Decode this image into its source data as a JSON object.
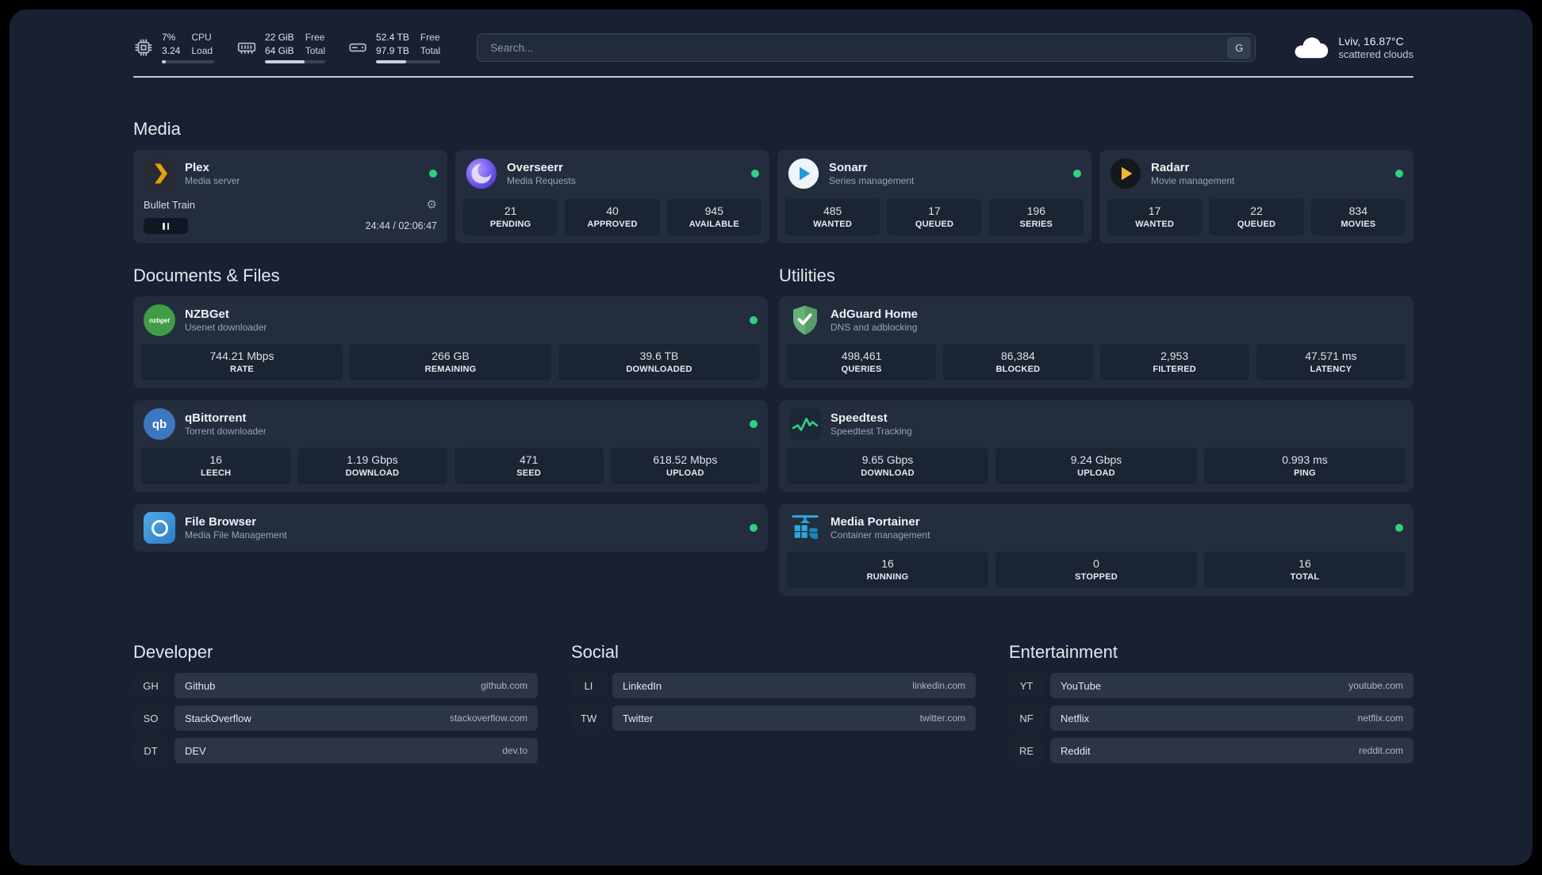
{
  "topbar": {
    "resources": [
      {
        "icon": "cpu-icon",
        "values": [
          "7%",
          "3.24"
        ],
        "labels": [
          "CPU",
          "Load"
        ],
        "progress_pct": 7
      },
      {
        "icon": "memory-icon",
        "values": [
          "22 GiB",
          "64 GiB"
        ],
        "labels": [
          "Free",
          "Total"
        ],
        "progress_pct": 66
      },
      {
        "icon": "disk-icon",
        "values": [
          "52.4 TB",
          "97.9 TB"
        ],
        "labels": [
          "Free",
          "Total"
        ],
        "progress_pct": 47
      }
    ],
    "search": {
      "placeholder": "Search...",
      "provider_label": "G"
    },
    "weather": {
      "icon": "cloud-icon",
      "location": "Lviv, 16.87°C",
      "condition": "scattered clouds"
    }
  },
  "groups": [
    {
      "id": "media",
      "title": "Media",
      "layout": "row",
      "cards": [
        {
          "id": "plex",
          "name": "Plex",
          "description": "Media server",
          "icon": "plex-icon",
          "status": "online",
          "player": {
            "title": "Bullet Train",
            "state": "paused",
            "time": "24:44 / 02:06:47"
          }
        },
        {
          "id": "overseerr",
          "name": "Overseerr",
          "description": "Media Requests",
          "icon": "overseerr-icon",
          "status": "online",
          "stats": [
            {
              "value": "21",
              "label": "PENDING"
            },
            {
              "value": "40",
              "label": "APPROVED"
            },
            {
              "value": "945",
              "label": "AVAILABLE"
            }
          ]
        },
        {
          "id": "sonarr",
          "name": "Sonarr",
          "description": "Series management",
          "icon": "sonarr-icon",
          "status": "online",
          "stats": [
            {
              "value": "485",
              "label": "WANTED"
            },
            {
              "value": "17",
              "label": "QUEUED"
            },
            {
              "value": "196",
              "label": "SERIES"
            }
          ]
        },
        {
          "id": "radarr",
          "name": "Radarr",
          "description": "Movie management",
          "icon": "radarr-icon",
          "status": "online",
          "stats": [
            {
              "value": "17",
              "label": "WANTED"
            },
            {
              "value": "22",
              "label": "QUEUED"
            },
            {
              "value": "834",
              "label": "MOVIES"
            }
          ]
        }
      ]
    },
    {
      "id": "documents",
      "title": "Documents & Files",
      "layout": "column",
      "cards": [
        {
          "id": "nzbget",
          "name": "NZBGet",
          "description": "Usenet downloader",
          "icon": "nzbget-icon",
          "status": "online",
          "stats": [
            {
              "value": "744.21 Mbps",
              "label": "RATE"
            },
            {
              "value": "266 GB",
              "label": "REMAINING"
            },
            {
              "value": "39.6 TB",
              "label": "DOWNLOADED"
            }
          ]
        },
        {
          "id": "qbittorrent",
          "name": "qBittorrent",
          "description": "Torrent downloader",
          "icon": "qbittorrent-icon",
          "status": "online",
          "stats": [
            {
              "value": "16",
              "label": "LEECH"
            },
            {
              "value": "1.19 Gbps",
              "label": "DOWNLOAD"
            },
            {
              "value": "471",
              "label": "SEED"
            },
            {
              "value": "618.52 Mbps",
              "label": "UPLOAD"
            }
          ]
        },
        {
          "id": "filebrowser",
          "name": "File Browser",
          "description": "Media File Management",
          "icon": "filebrowser-icon",
          "status": "online"
        }
      ]
    },
    {
      "id": "utilities",
      "title": "Utilities",
      "layout": "column",
      "cards": [
        {
          "id": "adguard",
          "name": "AdGuard Home",
          "description": "DNS and adblocking",
          "icon": "adguard-icon",
          "stats": [
            {
              "value": "498,461",
              "label": "QUERIES"
            },
            {
              "value": "86,384",
              "label": "BLOCKED"
            },
            {
              "value": "2,953",
              "label": "FILTERED"
            },
            {
              "value": "47.571 ms",
              "label": "LATENCY"
            }
          ]
        },
        {
          "id": "speedtest",
          "name": "Speedtest",
          "description": "Speedtest Tracking",
          "icon": "speedtest-icon",
          "stats": [
            {
              "value": "9.65 Gbps",
              "label": "DOWNLOAD"
            },
            {
              "value": "9.24 Gbps",
              "label": "UPLOAD"
            },
            {
              "value": "0.993 ms",
              "label": "PING"
            }
          ]
        },
        {
          "id": "portainer",
          "name": "Media Portainer",
          "description": "Container management",
          "icon": "portainer-icon",
          "status": "online",
          "stats": [
            {
              "value": "16",
              "label": "RUNNING"
            },
            {
              "value": "0",
              "label": "STOPPED"
            },
            {
              "value": "16",
              "label": "TOTAL"
            }
          ]
        }
      ]
    }
  ],
  "bookmarks": [
    {
      "title": "Developer",
      "items": [
        {
          "abbr": "GH",
          "name": "Github",
          "url": "github.com"
        },
        {
          "abbr": "SO",
          "name": "StackOverflow",
          "url": "stackoverflow.com"
        },
        {
          "abbr": "DT",
          "name": "DEV",
          "url": "dev.to"
        }
      ]
    },
    {
      "title": "Social",
      "items": [
        {
          "abbr": "LI",
          "name": "LinkedIn",
          "url": "linkedin.com"
        },
        {
          "abbr": "TW",
          "name": "Twitter",
          "url": "twitter.com"
        }
      ]
    },
    {
      "title": "Entertainment",
      "items": [
        {
          "abbr": "YT",
          "name": "YouTube",
          "url": "youtube.com"
        },
        {
          "abbr": "NF",
          "name": "Netflix",
          "url": "netflix.com"
        },
        {
          "abbr": "RE",
          "name": "Reddit",
          "url": "reddit.com"
        }
      ]
    }
  ],
  "colors": {
    "status_online": "#2fd07f",
    "panel": "#182031",
    "card": "#242d3d",
    "tile": "#1b2433"
  }
}
